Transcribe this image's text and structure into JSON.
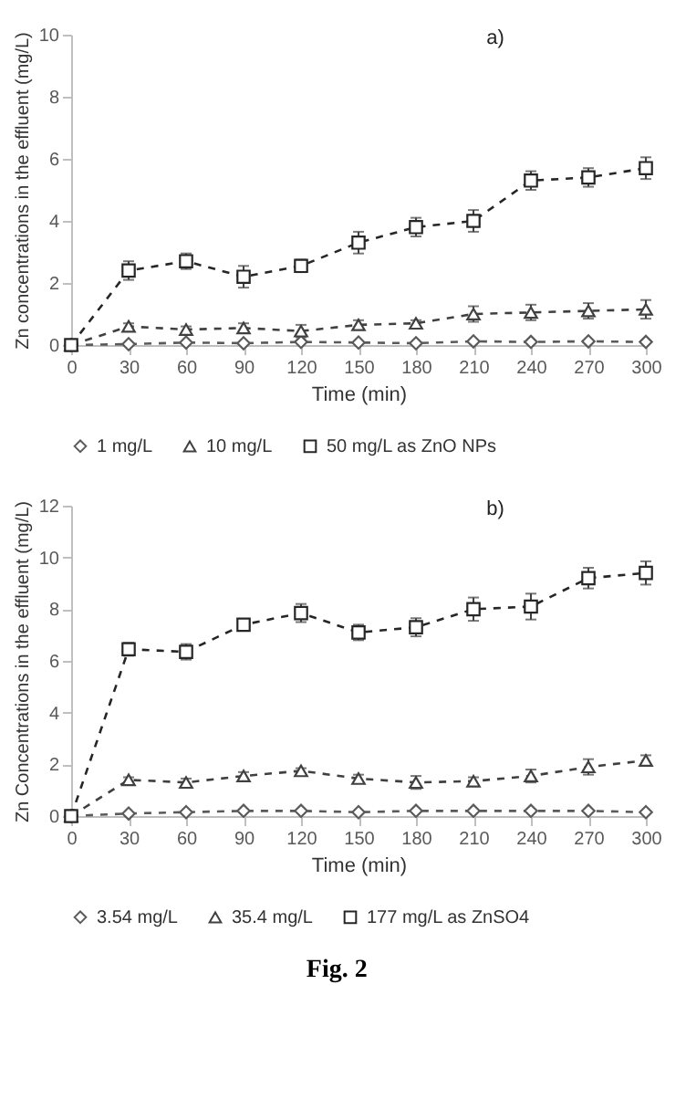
{
  "chart_data": [
    {
      "type": "line",
      "title": "a)",
      "xlabel": "Time (min)",
      "ylabel": "Zn concentrations in the effluent (mg/L)",
      "x": [
        0,
        30,
        60,
        90,
        120,
        150,
        180,
        210,
        240,
        270,
        300
      ],
      "xlim": [
        0,
        300
      ],
      "xticks": [
        0,
        30,
        60,
        90,
        120,
        150,
        180,
        210,
        240,
        270,
        300
      ],
      "ylim": [
        0,
        10
      ],
      "yticks": [
        0,
        2,
        4,
        6,
        8,
        10
      ],
      "grid": false,
      "legend": "bottom",
      "line_style": "dashed",
      "series": [
        {
          "name": "1 mg/L",
          "color": "#5a5a5a",
          "marker": "diamond",
          "values": [
            0,
            0.03,
            0.08,
            0.06,
            0.1,
            0.08,
            0.06,
            0.12,
            0.1,
            0.12,
            0.1
          ]
        },
        {
          "name": "10 mg/L",
          "color": "#404040",
          "marker": "triangle",
          "values": [
            0,
            0.6,
            0.5,
            0.55,
            0.45,
            0.65,
            0.7,
            1.0,
            1.05,
            1.1,
            1.15
          ],
          "errors": [
            null,
            0.1,
            0.1,
            0.15,
            0.2,
            0.15,
            0.1,
            0.25,
            0.25,
            0.25,
            0.3
          ]
        },
        {
          "name": "50 mg/L as ZnO NPs",
          "color": "#262626",
          "marker": "square",
          "values": [
            0,
            2.4,
            2.7,
            2.2,
            2.55,
            3.3,
            3.8,
            4.0,
            5.3,
            5.4,
            5.7
          ],
          "errors": [
            null,
            0.3,
            0.25,
            0.35,
            0.2,
            0.35,
            0.3,
            0.35,
            0.3,
            0.3,
            0.35
          ]
        }
      ]
    },
    {
      "type": "line",
      "title": "b)",
      "xlabel": "Time (min)",
      "ylabel": "Zn Concentrations in the effluent (mg/L)",
      "x": [
        0,
        30,
        60,
        90,
        120,
        150,
        180,
        210,
        240,
        270,
        300
      ],
      "xlim": [
        0,
        300
      ],
      "xticks": [
        0,
        30,
        60,
        90,
        120,
        150,
        180,
        210,
        240,
        270,
        300
      ],
      "ylim": [
        0,
        12
      ],
      "yticks": [
        0,
        2,
        4,
        6,
        8,
        10,
        12
      ],
      "grid": false,
      "legend": "bottom",
      "line_style": "dashed",
      "annotations": [
        "Fig. 2"
      ],
      "series": [
        {
          "name": "3.54 mg/L",
          "color": "#5a5a5a",
          "marker": "diamond",
          "values": [
            0,
            0.1,
            0.15,
            0.2,
            0.2,
            0.15,
            0.2,
            0.2,
            0.2,
            0.2,
            0.15
          ]
        },
        {
          "name": "35.4 mg/L",
          "color": "#404040",
          "marker": "triangle",
          "values": [
            0,
            1.4,
            1.3,
            1.55,
            1.75,
            1.45,
            1.3,
            1.35,
            1.55,
            1.9,
            2.15
          ],
          "errors": [
            null,
            0.1,
            0.15,
            0.15,
            0.1,
            0.15,
            0.25,
            0.15,
            0.25,
            0.3,
            0.2
          ]
        },
        {
          "name": "177 mg/L as ZnSO4",
          "color": "#262626",
          "marker": "square",
          "values": [
            0,
            6.45,
            6.35,
            7.4,
            7.85,
            7.1,
            7.3,
            8.0,
            8.1,
            9.2,
            9.4
          ],
          "errors": [
            null,
            0.25,
            0.3,
            0.15,
            0.35,
            0.3,
            0.35,
            0.45,
            0.5,
            0.4,
            0.45
          ]
        }
      ]
    }
  ]
}
